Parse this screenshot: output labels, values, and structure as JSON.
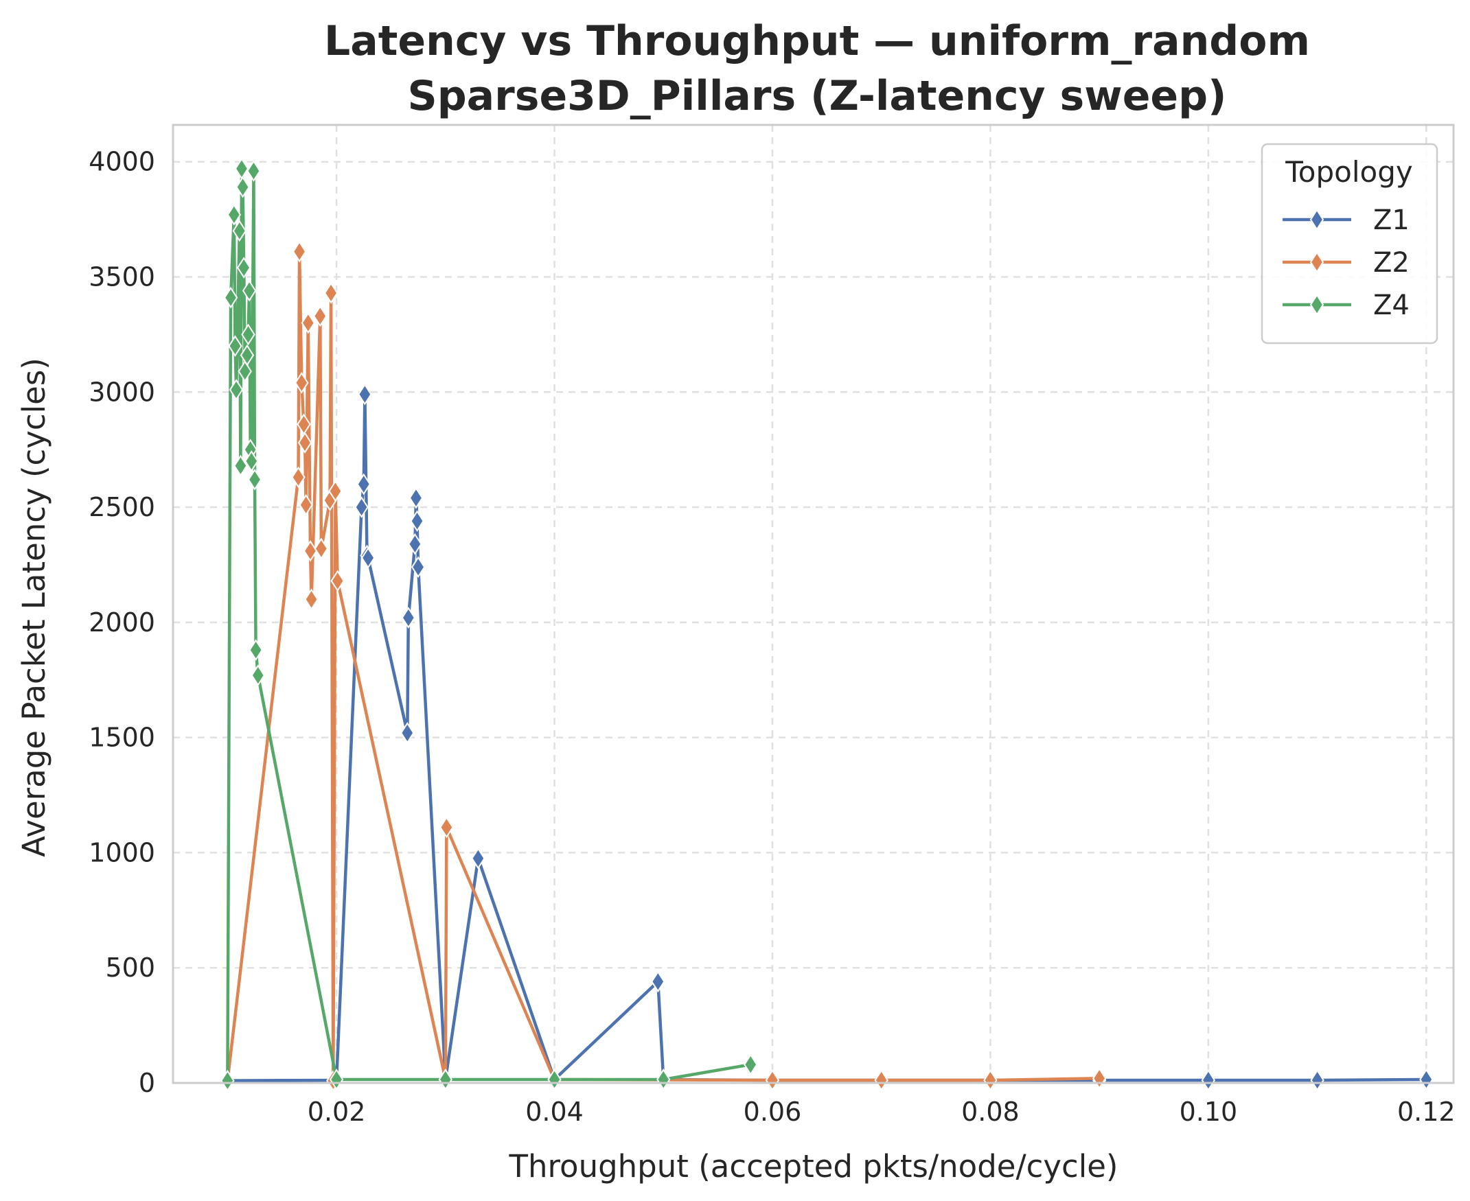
{
  "chart_data": {
    "type": "line",
    "title": "Latency vs Throughput — uniform_random",
    "subtitle": "Sparse3D_Pillars (Z-latency sweep)",
    "xlabel": "Throughput (accepted pkts/node/cycle)",
    "ylabel": "Average Packet Latency (cycles)",
    "xlim": [
      0.005,
      0.1225
    ],
    "ylim": [
      0,
      4160
    ],
    "xticks": [
      0.02,
      0.04,
      0.06,
      0.08,
      0.1,
      0.12
    ],
    "xtick_labels": [
      "0.02",
      "0.04",
      "0.06",
      "0.08",
      "0.10",
      "0.12"
    ],
    "yticks": [
      0,
      500,
      1000,
      1500,
      2000,
      2500,
      3000,
      3500,
      4000
    ],
    "ytick_labels": [
      "0",
      "500",
      "1000",
      "1500",
      "2000",
      "2500",
      "3000",
      "3500",
      "4000"
    ],
    "grid": true,
    "legend": {
      "title": "Topology",
      "placement": "top-right"
    },
    "series": [
      {
        "name": "Z1",
        "color": "#4c72b0",
        "points": [
          [
            0.01,
            10
          ],
          [
            0.02,
            12
          ],
          [
            0.0223,
            2500
          ],
          [
            0.0225,
            2600
          ],
          [
            0.0226,
            2990
          ],
          [
            0.0228,
            2290
          ],
          [
            0.0229,
            2280
          ],
          [
            0.0265,
            1520
          ],
          [
            0.0266,
            2020
          ],
          [
            0.0272,
            2340
          ],
          [
            0.0273,
            2540
          ],
          [
            0.0274,
            2440
          ],
          [
            0.0275,
            2240
          ],
          [
            0.03,
            15
          ],
          [
            0.033,
            975
          ],
          [
            0.04,
            15
          ],
          [
            0.0495,
            440
          ],
          [
            0.05,
            15
          ],
          [
            0.06,
            12
          ],
          [
            0.07,
            12
          ],
          [
            0.08,
            12
          ],
          [
            0.09,
            12
          ],
          [
            0.1,
            12
          ],
          [
            0.11,
            12
          ],
          [
            0.12,
            15
          ]
        ]
      },
      {
        "name": "Z2",
        "color": "#dd8452",
        "points": [
          [
            0.01,
            10
          ],
          [
            0.0165,
            2630
          ],
          [
            0.0166,
            3610
          ],
          [
            0.0168,
            3040
          ],
          [
            0.017,
            2860
          ],
          [
            0.0171,
            2780
          ],
          [
            0.0172,
            2510
          ],
          [
            0.0174,
            3300
          ],
          [
            0.0176,
            2310
          ],
          [
            0.0177,
            2100
          ],
          [
            0.0185,
            3330
          ],
          [
            0.0186,
            2320
          ],
          [
            0.0194,
            2530
          ],
          [
            0.0195,
            3430
          ],
          [
            0.0197,
            10
          ],
          [
            0.0199,
            2570
          ],
          [
            0.0201,
            2180
          ],
          [
            0.03,
            15
          ],
          [
            0.0301,
            1110
          ],
          [
            0.04,
            15
          ],
          [
            0.06,
            12
          ],
          [
            0.07,
            12
          ],
          [
            0.08,
            12
          ],
          [
            0.09,
            20
          ]
        ]
      },
      {
        "name": "Z4",
        "color": "#55a868",
        "points": [
          [
            0.01,
            10
          ],
          [
            0.0103,
            3410
          ],
          [
            0.0106,
            3770
          ],
          [
            0.0107,
            3200
          ],
          [
            0.0108,
            3010
          ],
          [
            0.0111,
            3700
          ],
          [
            0.0112,
            2680
          ],
          [
            0.0113,
            3970
          ],
          [
            0.0114,
            3890
          ],
          [
            0.0115,
            3540
          ],
          [
            0.0116,
            3090
          ],
          [
            0.0118,
            3160
          ],
          [
            0.0119,
            3250
          ],
          [
            0.012,
            3440
          ],
          [
            0.0121,
            2750
          ],
          [
            0.0122,
            2700
          ],
          [
            0.0124,
            3960
          ],
          [
            0.0125,
            2620
          ],
          [
            0.0126,
            1880
          ],
          [
            0.0128,
            1770
          ],
          [
            0.02,
            15
          ],
          [
            0.03,
            15
          ],
          [
            0.04,
            15
          ],
          [
            0.05,
            15
          ],
          [
            0.058,
            80
          ]
        ]
      }
    ]
  }
}
